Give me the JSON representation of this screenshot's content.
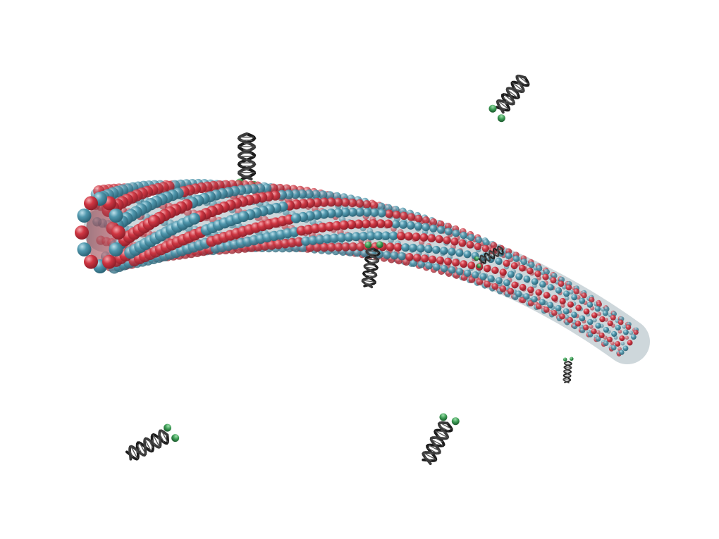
{
  "scene": {
    "subject": "microtubule-with-dna-helices",
    "colors": {
      "background": "#ffffff",
      "subunit_red": "#cf3642",
      "subunit_red_dark": "#8f1f2a",
      "subunit_teal": "#4f97ad",
      "subunit_teal_dark": "#2c6477",
      "helix_strand": "#1c1c1c",
      "binding_bead": "#3a9a52"
    },
    "icons": {
      "tube": "microtubule-icon",
      "helix": "dna-helix-icon",
      "bead": "green-bead-icon"
    },
    "free_helix_count": 3,
    "attached_helix_count": 4
  }
}
